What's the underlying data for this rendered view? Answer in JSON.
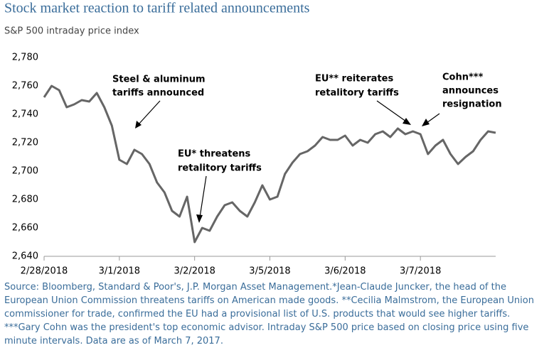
{
  "chart_data": {
    "type": "line",
    "title": "Stock market reaction to tariff related announcements",
    "subtitle": "S&P 500 intraday price index",
    "categories": [
      "2/28/2018",
      null,
      null,
      null,
      null,
      null,
      null,
      null,
      null,
      null,
      "3/1/2018",
      null,
      null,
      null,
      null,
      null,
      null,
      null,
      null,
      null,
      "3/2/2018",
      null,
      null,
      null,
      null,
      null,
      null,
      null,
      null,
      null,
      "3/5/2018",
      null,
      null,
      null,
      null,
      null,
      null,
      null,
      null,
      null,
      "3/6/2018",
      null,
      null,
      null,
      null,
      null,
      null,
      null,
      null,
      null,
      "3/7/2018",
      null,
      null,
      null,
      null,
      null,
      null,
      null,
      null,
      null,
      null
    ],
    "series": [
      {
        "name": "S&P 500",
        "color": "#666666",
        "values": [
          2752,
          2760,
          2757,
          2745,
          2747,
          2750,
          2749,
          2755,
          2745,
          2732,
          2708,
          2705,
          2715,
          2712,
          2705,
          2692,
          2685,
          2672,
          2668,
          2682,
          2650,
          2660,
          2658,
          2668,
          2676,
          2678,
          2672,
          2668,
          2678,
          2690,
          2680,
          2682,
          2698,
          2706,
          2712,
          2714,
          2718,
          2724,
          2722,
          2722,
          2725,
          2718,
          2722,
          2720,
          2726,
          2728,
          2724,
          2730,
          2726,
          2728,
          2726,
          2712,
          2718,
          2722,
          2712,
          2705,
          2710,
          2714,
          2722,
          2728,
          2727
        ]
      }
    ],
    "ylim": [
      2640,
      2780
    ],
    "yticks": [
      {
        "value": 2640,
        "label": "2,640"
      },
      {
        "value": 2660,
        "label": "2,660"
      },
      {
        "value": 2680,
        "label": "2,680"
      },
      {
        "value": 2700,
        "label": "2,700"
      },
      {
        "value": 2720,
        "label": "2,720"
      },
      {
        "value": 2740,
        "label": "2,740"
      },
      {
        "value": 2760,
        "label": "2,760"
      },
      {
        "value": 2780,
        "label": "2,780"
      }
    ],
    "annotations": [
      {
        "lines": [
          "Steel & aluminum",
          "tariffs announced"
        ]
      },
      {
        "lines": [
          "EU* threatens",
          "retalitory tariffs"
        ]
      },
      {
        "lines": [
          "EU** reiterates",
          "retalitory tariffs"
        ]
      },
      {
        "lines": [
          "Cohn***",
          "announces",
          "resignation"
        ]
      }
    ],
    "source": "Source: Bloomberg, Standard & Poor's, J.P. Morgan Asset Management.*Jean-Claude Juncker, the head of the European Union Commission threatens tariffs on American made goods. **Cecilia Malmstrom, the European Union commissioner for trade, confirmed the EU had a provisional list of U.S. products that would see higher tariffs. ***Gary Cohn was the president's top economic advisor. Intraday S&P 500 price based on closing price using five minute intervals. Data are as of March 7, 2017."
  }
}
